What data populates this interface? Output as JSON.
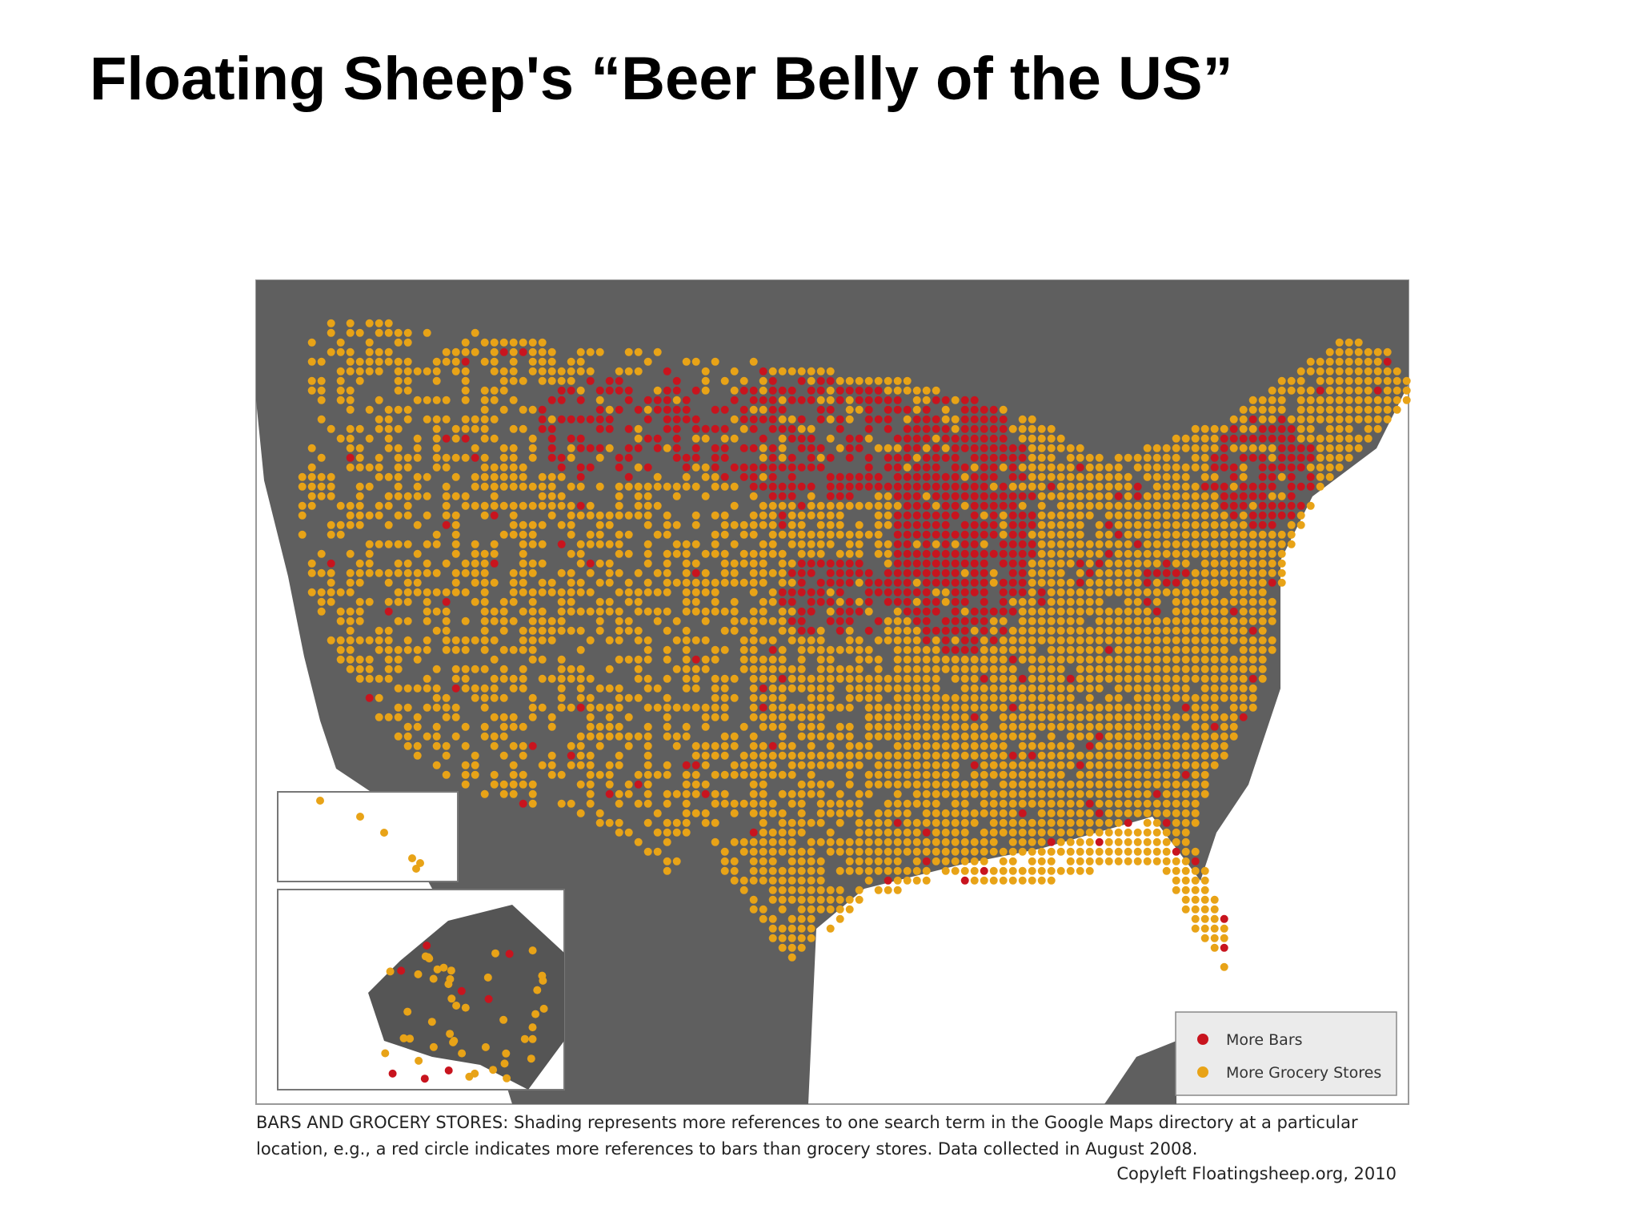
{
  "title": "Floating Sheep's “Beer Belly of the US”",
  "map": {
    "legend": [
      {
        "label": "More Bars",
        "color": "#c8141e"
      },
      {
        "label": "More Grocery Stores",
        "color": "#e8a317"
      }
    ],
    "caption": [
      "BARS AND GROCERY STORES: Shading represents more references to one search term in the Google Maps directory at a particular",
      "location, e.g., a red circle indicates more references to bars than grocery stores. Data collected in August 2008."
    ],
    "credit": "Copyleft Floatingsheep.org, 2010"
  }
}
